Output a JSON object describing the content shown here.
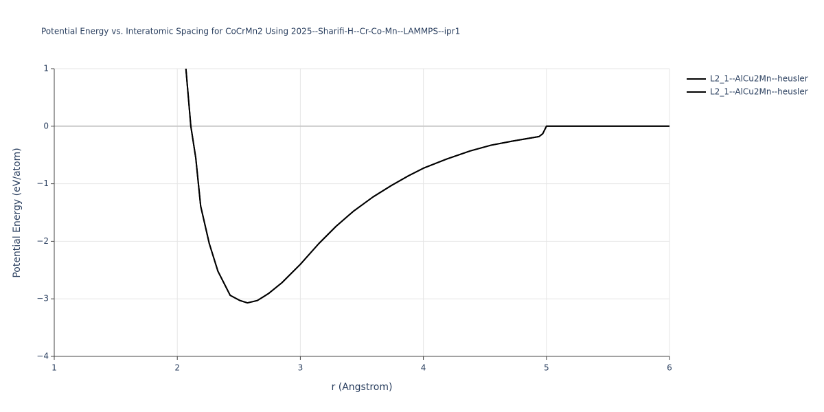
{
  "chart_data": {
    "type": "line",
    "title": "Potential Energy vs. Interatomic Spacing for CoCrMn2 Using 2025--Sharifi-H--Cr-Co-Mn--LAMMPS--ipr1",
    "x_label": "r (Angstrom)",
    "y_label": "Potential Energy (eV/atom)",
    "x": [
      2.07,
      2.11,
      2.15,
      2.19,
      2.26,
      2.33,
      2.43,
      2.51,
      2.57,
      2.65,
      2.74,
      2.85,
      3.0,
      3.15,
      3.29,
      3.43,
      3.59,
      3.74,
      3.88,
      4.0,
      4.19,
      4.38,
      4.55,
      4.72,
      4.94,
      4.97,
      5.0,
      6.0
    ],
    "series": [
      {
        "name": "L2_1--AlCu2Mn--heusler",
        "color": "#000000",
        "values": [
          1.0,
          0.0,
          -0.55,
          -1.39,
          -2.04,
          -2.52,
          -2.94,
          -3.03,
          -3.07,
          -3.03,
          -2.91,
          -2.72,
          -2.4,
          -2.04,
          -1.74,
          -1.48,
          -1.23,
          -1.03,
          -0.86,
          -0.73,
          -0.57,
          -0.43,
          -0.33,
          -0.26,
          -0.18,
          -0.13,
          0.0,
          0.0
        ]
      },
      {
        "name": "L2_1--AlCu2Mn--heusler",
        "color": "#000000",
        "values": [
          1.0,
          0.0,
          -0.55,
          -1.39,
          -2.04,
          -2.52,
          -2.94,
          -3.03,
          -3.07,
          -3.03,
          -2.91,
          -2.72,
          -2.4,
          -2.04,
          -1.74,
          -1.48,
          -1.23,
          -1.03,
          -0.86,
          -0.73,
          -0.57,
          -0.43,
          -0.33,
          -0.26,
          -0.18,
          -0.13,
          0.0,
          0.0
        ]
      }
    ],
    "xlim": [
      1,
      6
    ],
    "xticks": [
      1,
      2,
      3,
      4,
      5,
      6
    ],
    "ylim": [
      -4,
      1
    ],
    "yticks": [
      {
        "value": -4,
        "label": "−4"
      },
      {
        "value": -3,
        "label": "−3"
      },
      {
        "value": -2,
        "label": "−2"
      },
      {
        "value": -1,
        "label": "−1"
      },
      0,
      1
    ],
    "grid": true
  }
}
